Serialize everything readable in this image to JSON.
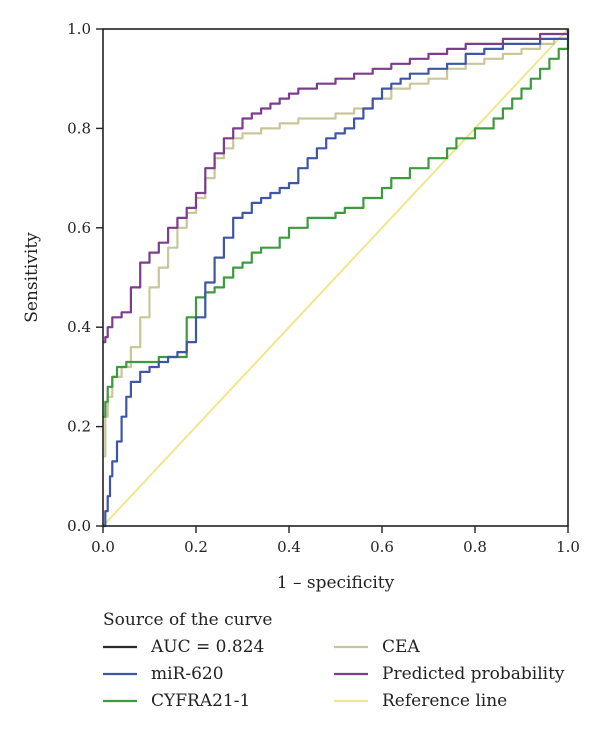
{
  "chart_data": {
    "type": "line",
    "xlabel": "1 – specificity",
    "ylabel": "Sensitivity",
    "xlim": [
      0.0,
      1.0
    ],
    "ylim": [
      0.0,
      1.0
    ],
    "x_ticks": [
      "0.0",
      "0.2",
      "0.4",
      "0.6",
      "0.8",
      "1.0"
    ],
    "y_ticks": [
      "0.0",
      "0.2",
      "0.4",
      "0.6",
      "0.8",
      "1.0"
    ],
    "grid": false,
    "legend": {
      "title": "Source of the curve",
      "placement": "bottom",
      "entries": [
        {
          "label": "AUC = 0.824",
          "color": "#2b2b2b"
        },
        {
          "label": "miR-620",
          "color": "#3f55a5"
        },
        {
          "label": "CYFRA21-1",
          "color": "#3e9a3e"
        },
        {
          "label": "CEA",
          "color": "#c9c79a"
        },
        {
          "label": "Predicted probability",
          "color": "#7b3d8c"
        },
        {
          "label": "Reference line",
          "color": "#f0e68c"
        }
      ]
    },
    "series": [
      {
        "name": "miR-620",
        "color": "#3f55a5",
        "x": [
          0.0,
          0.005,
          0.01,
          0.015,
          0.02,
          0.03,
          0.04,
          0.05,
          0.06,
          0.08,
          0.1,
          0.12,
          0.14,
          0.16,
          0.18,
          0.2,
          0.22,
          0.24,
          0.26,
          0.28,
          0.3,
          0.32,
          0.34,
          0.36,
          0.38,
          0.4,
          0.42,
          0.44,
          0.46,
          0.48,
          0.5,
          0.52,
          0.54,
          0.56,
          0.58,
          0.6,
          0.62,
          0.64,
          0.66,
          0.7,
          0.74,
          0.78,
          0.82,
          0.86,
          0.9,
          0.94,
          0.97,
          1.0
        ],
        "y": [
          0.0,
          0.03,
          0.06,
          0.1,
          0.13,
          0.17,
          0.22,
          0.26,
          0.29,
          0.31,
          0.32,
          0.33,
          0.34,
          0.35,
          0.37,
          0.42,
          0.49,
          0.54,
          0.58,
          0.62,
          0.63,
          0.65,
          0.66,
          0.67,
          0.68,
          0.69,
          0.72,
          0.74,
          0.76,
          0.78,
          0.79,
          0.8,
          0.82,
          0.84,
          0.86,
          0.88,
          0.89,
          0.9,
          0.91,
          0.92,
          0.93,
          0.95,
          0.96,
          0.97,
          0.97,
          0.98,
          0.98,
          1.0
        ]
      },
      {
        "name": "CYFRA21-1",
        "color": "#3e9a3e",
        "x": [
          0.0,
          0.005,
          0.01,
          0.02,
          0.03,
          0.05,
          0.08,
          0.12,
          0.16,
          0.18,
          0.2,
          0.22,
          0.24,
          0.26,
          0.28,
          0.3,
          0.32,
          0.34,
          0.36,
          0.38,
          0.4,
          0.44,
          0.48,
          0.5,
          0.52,
          0.56,
          0.6,
          0.62,
          0.66,
          0.7,
          0.74,
          0.76,
          0.8,
          0.84,
          0.86,
          0.88,
          0.9,
          0.92,
          0.94,
          0.96,
          0.98,
          1.0
        ],
        "y": [
          0.22,
          0.25,
          0.28,
          0.3,
          0.32,
          0.33,
          0.33,
          0.34,
          0.34,
          0.42,
          0.46,
          0.47,
          0.48,
          0.5,
          0.52,
          0.53,
          0.55,
          0.56,
          0.56,
          0.58,
          0.6,
          0.62,
          0.62,
          0.63,
          0.64,
          0.66,
          0.68,
          0.7,
          0.72,
          0.74,
          0.76,
          0.78,
          0.8,
          0.82,
          0.84,
          0.86,
          0.88,
          0.9,
          0.92,
          0.94,
          0.96,
          0.98
        ]
      },
      {
        "name": "CEA",
        "color": "#c9c79a",
        "x": [
          0.0,
          0.005,
          0.01,
          0.02,
          0.04,
          0.06,
          0.08,
          0.1,
          0.12,
          0.14,
          0.16,
          0.18,
          0.2,
          0.22,
          0.24,
          0.26,
          0.28,
          0.3,
          0.34,
          0.38,
          0.42,
          0.46,
          0.5,
          0.54,
          0.58,
          0.62,
          0.66,
          0.7,
          0.74,
          0.78,
          0.82,
          0.86,
          0.9,
          0.94,
          0.97,
          1.0
        ],
        "y": [
          0.14,
          0.22,
          0.26,
          0.3,
          0.32,
          0.36,
          0.42,
          0.48,
          0.52,
          0.56,
          0.6,
          0.63,
          0.66,
          0.7,
          0.74,
          0.76,
          0.78,
          0.79,
          0.8,
          0.81,
          0.82,
          0.82,
          0.83,
          0.84,
          0.86,
          0.88,
          0.89,
          0.9,
          0.92,
          0.93,
          0.94,
          0.95,
          0.96,
          0.97,
          0.98,
          0.99
        ]
      },
      {
        "name": "Predicted probability",
        "color": "#7b3d8c",
        "x": [
          0.0,
          0.005,
          0.01,
          0.02,
          0.04,
          0.06,
          0.08,
          0.1,
          0.12,
          0.14,
          0.16,
          0.18,
          0.2,
          0.22,
          0.24,
          0.26,
          0.28,
          0.3,
          0.32,
          0.34,
          0.36,
          0.38,
          0.4,
          0.42,
          0.46,
          0.5,
          0.54,
          0.58,
          0.62,
          0.66,
          0.7,
          0.74,
          0.78,
          0.82,
          0.86,
          0.9,
          0.94,
          0.97,
          1.0
        ],
        "y": [
          0.37,
          0.38,
          0.4,
          0.42,
          0.43,
          0.48,
          0.53,
          0.55,
          0.57,
          0.6,
          0.62,
          0.64,
          0.67,
          0.72,
          0.75,
          0.78,
          0.8,
          0.82,
          0.83,
          0.84,
          0.85,
          0.86,
          0.87,
          0.88,
          0.89,
          0.9,
          0.91,
          0.92,
          0.93,
          0.94,
          0.95,
          0.96,
          0.97,
          0.97,
          0.98,
          0.98,
          0.99,
          0.99,
          1.0
        ]
      },
      {
        "name": "Reference line",
        "color": "#f0e68c",
        "x": [
          0.0,
          1.0
        ],
        "y": [
          0.0,
          1.0
        ]
      }
    ]
  }
}
